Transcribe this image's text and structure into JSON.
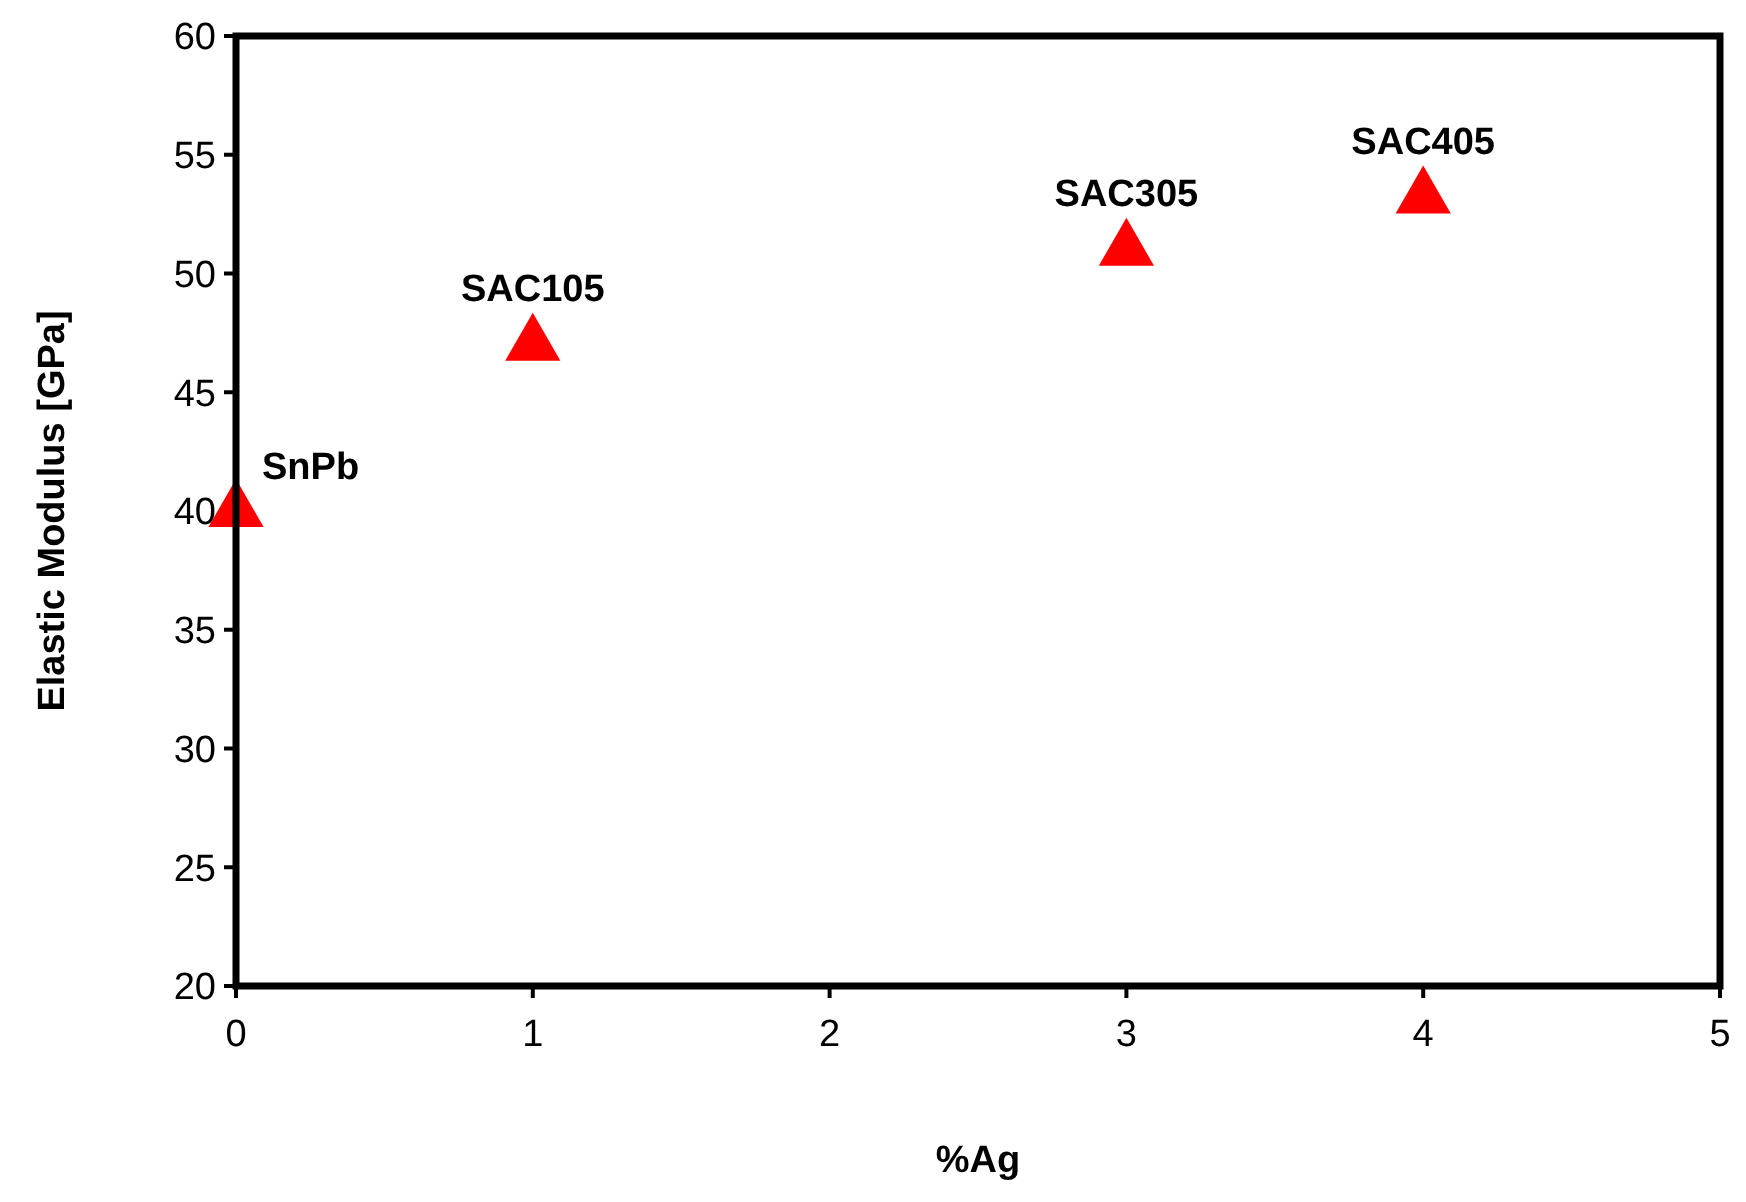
{
  "chart_data": {
    "type": "scatter",
    "xlabel": "%Ag",
    "ylabel": "Elastic Modulus [GPa]",
    "x": [
      0,
      1,
      3,
      4
    ],
    "series": [
      {
        "color": "#ff0000",
        "values": [
          40,
          47,
          51,
          53.2
        ]
      }
    ],
    "xlim": [
      0,
      5
    ],
    "xticks": [
      0,
      1,
      2,
      3,
      4,
      5
    ],
    "ylim": [
      20,
      60
    ],
    "yticks": [
      20,
      25,
      30,
      35,
      40,
      45,
      50,
      55,
      60
    ],
    "grid": false,
    "marker": "triangle",
    "annotations": [
      {
        "text": "SnPb",
        "x": 0,
        "y": 40
      },
      {
        "text": "SAC105",
        "x": 1,
        "y": 47
      },
      {
        "text": "SAC305",
        "x": 3,
        "y": 51
      },
      {
        "text": "SAC405",
        "x": 4,
        "y": 53.2
      }
    ]
  }
}
